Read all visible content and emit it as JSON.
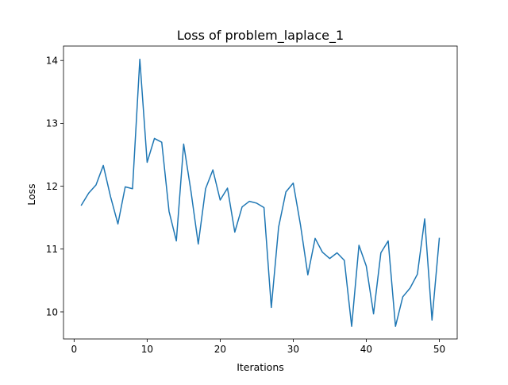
{
  "chart_data": {
    "type": "line",
    "title": "Loss of problem_laplace_1",
    "xlabel": "Iterations",
    "ylabel": "Loss",
    "xlim": [
      -1.45,
      52.45
    ],
    "ylim": [
      9.57,
      14.23
    ],
    "xticks": [
      0,
      10,
      20,
      30,
      40,
      50
    ],
    "yticks": [
      10,
      11,
      12,
      13,
      14
    ],
    "grid": false,
    "legend": "none",
    "series": [
      {
        "color": "#1f77b4",
        "x": [
          1,
          2,
          3,
          4,
          5,
          6,
          7,
          8,
          9,
          10,
          11,
          12,
          13,
          14,
          15,
          16,
          17,
          18,
          19,
          20,
          21,
          22,
          23,
          24,
          25,
          26,
          27,
          28,
          29,
          30,
          31,
          32,
          33,
          34,
          35,
          36,
          37,
          38,
          39,
          40,
          41,
          42,
          43,
          44,
          45,
          46,
          47,
          48,
          49,
          50
        ],
        "y": [
          11.7,
          11.89,
          12.02,
          12.33,
          11.83,
          11.4,
          11.99,
          11.96,
          14.02,
          12.38,
          12.76,
          12.7,
          11.6,
          11.13,
          12.67,
          11.92,
          11.08,
          11.96,
          12.26,
          11.78,
          11.97,
          11.27,
          11.67,
          11.76,
          11.73,
          11.66,
          10.07,
          11.35,
          11.91,
          12.05,
          11.38,
          10.59,
          11.17,
          10.95,
          10.85,
          10.94,
          10.82,
          9.77,
          11.06,
          10.73,
          9.97,
          10.94,
          11.13,
          9.77,
          10.24,
          10.38,
          10.6,
          11.48,
          9.87,
          11.17
        ]
      }
    ]
  }
}
